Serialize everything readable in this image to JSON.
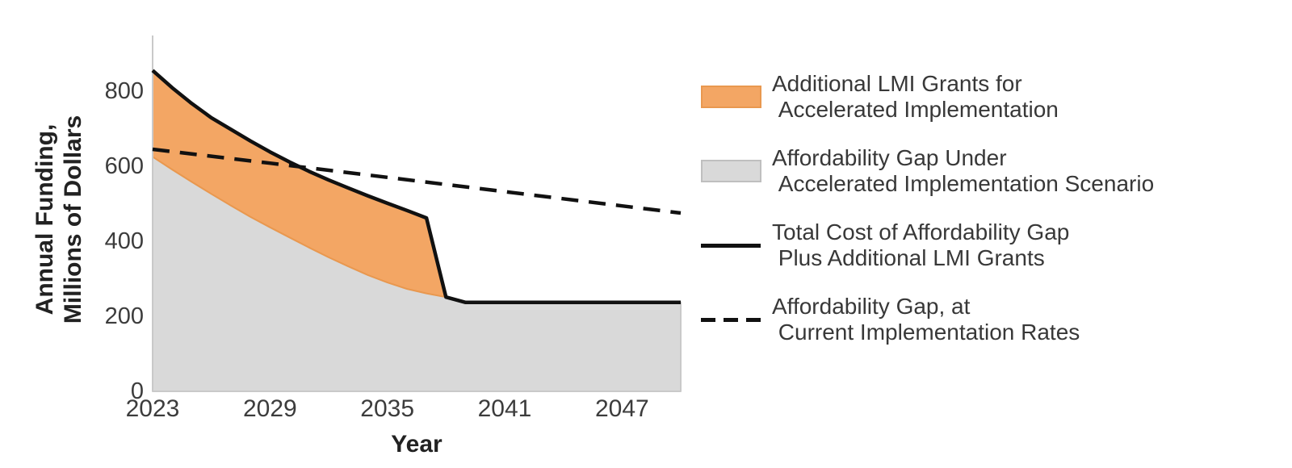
{
  "colors": {
    "orange_fill": "#F3A664",
    "orange_edge": "#E9984F",
    "gray_fill": "#D9D9D9",
    "gray_edge": "#C9C9C9",
    "line_black": "#111111",
    "axis_line": "#C9C9C9",
    "tick_text": "#3C3C3C",
    "title_text": "#222222",
    "legend_text": "#383838"
  },
  "axes": {
    "y_title": "Annual Funding,\nMillions of Dollars",
    "x_title": "Year"
  },
  "legend": {
    "items": [
      {
        "marker": "area-orange",
        "line1": "Additional LMI Grants for",
        "line2": " Accelerated Implementation"
      },
      {
        "marker": "area-gray",
        "line1": "Affordability Gap Under",
        "line2": " Accelerated Implementation Scenario"
      },
      {
        "marker": "line-solid",
        "line1": "Total Cost of Affordability Gap",
        "line2": " Plus Additional LMI Grants"
      },
      {
        "marker": "line-dashed",
        "line1": "Affordability Gap, at",
        "line2": " Current Implementation Rates"
      }
    ]
  },
  "chart_data": {
    "type": "area",
    "title": "",
    "xlabel": "Year",
    "ylabel": "Annual Funding, Millions of Dollars",
    "xlim": [
      2023,
      2050
    ],
    "ylim": [
      0,
      948
    ],
    "x_ticks": [
      2023,
      2029,
      2035,
      2041,
      2047
    ],
    "y_ticks": [
      0,
      200,
      400,
      600,
      800
    ],
    "grid": false,
    "legend_position": "right",
    "band_end_year": 2038,
    "series": [
      {
        "name": "Affordability Gap Under Accelerated Implementation Scenario",
        "type": "area",
        "x": [
          2023,
          2024,
          2025,
          2026,
          2027,
          2028,
          2029,
          2030,
          2031,
          2032,
          2033,
          2034,
          2035,
          2036,
          2037,
          2038,
          2039,
          2050
        ],
        "values": [
          625,
          591,
          558,
          526,
          495,
          465,
          437,
          410,
          383,
          357,
          333,
          310,
          290,
          273,
          261,
          251,
          237,
          237
        ]
      },
      {
        "name": "Additional LMI Grants for Accelerated Implementation",
        "type": "band",
        "note": "orange band between accelerated-gap area top and total-cost line, 2023-2038"
      },
      {
        "name": "Total Cost of Affordability Gap Plus Additional LMI Grants",
        "type": "line",
        "style": "solid",
        "x": [
          2023,
          2024,
          2025,
          2026,
          2027,
          2028,
          2029,
          2030,
          2031,
          2032,
          2033,
          2034,
          2035,
          2036,
          2037,
          2038,
          2039,
          2050
        ],
        "values": [
          855,
          809,
          767,
          729,
          698,
          667,
          638,
          611,
          586,
          563,
          542,
          521,
          501,
          482,
          462,
          251,
          237,
          237
        ]
      },
      {
        "name": "Affordability Gap, at Current Implementation Rates",
        "type": "line",
        "style": "dashed",
        "x": [
          2023,
          2029,
          2035,
          2041,
          2047,
          2050
        ],
        "values": [
          645,
          608,
          570,
          532,
          494,
          475
        ]
      }
    ]
  }
}
